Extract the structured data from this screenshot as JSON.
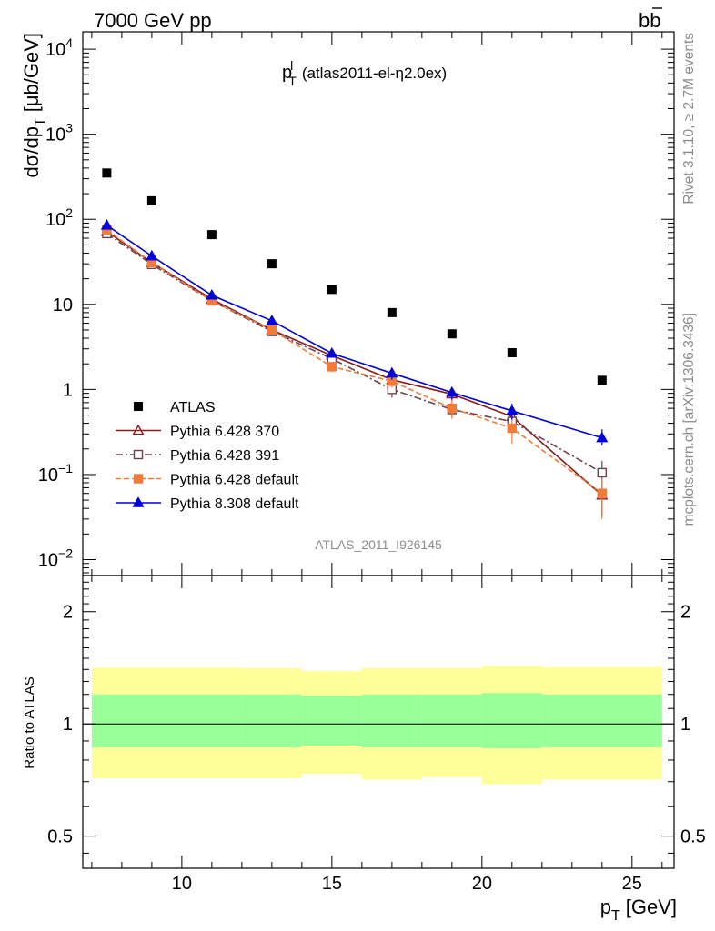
{
  "header": {
    "left": "7000 GeV pp",
    "right_main": "b",
    "right_bar": "b"
  },
  "side_labels": {
    "rivet": "Rivet 3.1.10, ≥ 2.7M events",
    "mcplots": "mcplots.cern.ch [arXiv:1306.3436]"
  },
  "chart_data": {
    "type": "scatter",
    "title": "(atlas2011-el-η2.0ex)",
    "title_var": "p",
    "title_sub": "T",
    "title_sup": "l",
    "watermark": "ATLAS_2011_I926145",
    "ylabel_main": "dσ/dp",
    "ylabel_sub": "T",
    "ylabel_unit": "[μb/GeV]",
    "ylabel_ratio": "Ratio to ATLAS",
    "xlabel_main": "p",
    "xlabel_sub": "T",
    "xlabel_unit": "[GeV]",
    "xlim": [
      6.7,
      26.4
    ],
    "main_ylim": [
      0.0065,
      16000
    ],
    "main_yscale": "log",
    "ratio_ylim": [
      0.41,
      2.5
    ],
    "ratio_yscale": "log",
    "x_ticks": [
      "10",
      "15",
      "20",
      "25"
    ],
    "main_y_ticks": [
      {
        "base": "10",
        "exp": "4"
      },
      {
        "base": "10",
        "exp": "3"
      },
      {
        "base": "10",
        "exp": "2"
      },
      {
        "base": "10",
        "exp": ""
      },
      {
        "base": "1",
        "exp": ""
      },
      {
        "base": "10",
        "exp": "−1"
      },
      {
        "base": "10",
        "exp": "−2"
      }
    ],
    "ratio_y_ticks": [
      "2",
      "1",
      "0.5"
    ],
    "legend_position": "bottom-left",
    "reference": {
      "name": "ATLAS",
      "x": [
        7.5,
        9,
        11,
        13,
        15,
        17,
        19,
        21,
        24
      ],
      "y": [
        350,
        165,
        66,
        30,
        15,
        8,
        4.5,
        2.7,
        1.28
      ]
    },
    "series": [
      {
        "name": "Pythia 6.428 370",
        "color": "#8b1a1a",
        "dash": "",
        "marker": "open-triangle",
        "x": [
          7.5,
          9,
          11,
          13,
          15,
          17,
          19,
          21,
          24
        ],
        "y": [
          72,
          31,
          11.5,
          5,
          2.5,
          1.3,
          0.88,
          0.48,
          0.057
        ],
        "err_hi": [
          0,
          0,
          0,
          0.3,
          0.25,
          0.25,
          0.15,
          0.1,
          0.02
        ],
        "err_lo": [
          0,
          0,
          0,
          0.3,
          0.25,
          0.25,
          0.15,
          0.1,
          0.025
        ]
      },
      {
        "name": "Pythia 6.428 391",
        "color": "#704050",
        "dash": "8,3,2,3",
        "marker": "open-square",
        "x": [
          7.5,
          9,
          11,
          13,
          15,
          17,
          19,
          21,
          24
        ],
        "y": [
          68,
          29.5,
          11,
          4.8,
          2.3,
          1.0,
          0.58,
          0.42,
          0.105
        ],
        "err_hi": [
          0,
          0,
          0,
          0.3,
          0.25,
          0.2,
          0.1,
          0.08,
          0.04
        ],
        "err_lo": [
          0,
          0,
          0,
          0.3,
          0.25,
          0.2,
          0.1,
          0.08,
          0.03
        ]
      },
      {
        "name": "Pythia 6.428 default",
        "color": "#f07b3a",
        "dash": "6,3",
        "marker": "filled-square",
        "x": [
          7.5,
          9,
          11,
          13,
          15,
          17,
          19,
          21,
          24
        ],
        "y": [
          75,
          31,
          11,
          5,
          1.85,
          1.25,
          0.6,
          0.35,
          0.06
        ],
        "err_hi": [
          0,
          0,
          0,
          0.3,
          0.25,
          0.2,
          0.15,
          0.12,
          0.03
        ],
        "err_lo": [
          0,
          0,
          0,
          0.3,
          0.25,
          0.2,
          0.15,
          0.12,
          0.03
        ]
      },
      {
        "name": "Pythia 8.308 default",
        "color": "#0000dd",
        "dash": "",
        "marker": "filled-triangle",
        "x": [
          7.5,
          9,
          11,
          13,
          15,
          17,
          19,
          21,
          24
        ],
        "y": [
          85,
          37,
          12.8,
          6.4,
          2.65,
          1.55,
          0.92,
          0.56,
          0.27
        ],
        "err_hi": [
          0,
          0,
          0,
          0.3,
          0.25,
          0.25,
          0.15,
          0.12,
          0.07
        ],
        "err_lo": [
          0,
          0,
          0,
          0.3,
          0.25,
          0.25,
          0.15,
          0.12,
          0.05
        ]
      }
    ],
    "ratio_band": [
      {
        "x0": 7,
        "x1": 12,
        "inner_lo": 0.865,
        "inner_hi": 1.2,
        "outer_lo": 0.715,
        "outer_hi": 1.415
      },
      {
        "x0": 12,
        "x1": 14,
        "inner_lo": 0.865,
        "inner_hi": 1.2,
        "outer_lo": 0.715,
        "outer_hi": 1.41
      },
      {
        "x0": 14,
        "x1": 16,
        "inner_lo": 0.875,
        "inner_hi": 1.19,
        "outer_lo": 0.735,
        "outer_hi": 1.385
      },
      {
        "x0": 16,
        "x1": 18,
        "inner_lo": 0.865,
        "inner_hi": 1.2,
        "outer_lo": 0.71,
        "outer_hi": 1.41
      },
      {
        "x0": 18,
        "x1": 20,
        "inner_lo": 0.865,
        "inner_hi": 1.2,
        "outer_lo": 0.72,
        "outer_hi": 1.41
      },
      {
        "x0": 20,
        "x1": 22,
        "inner_lo": 0.86,
        "inner_hi": 1.21,
        "outer_lo": 0.69,
        "outer_hi": 1.43
      },
      {
        "x0": 22,
        "x1": 26,
        "inner_lo": 0.865,
        "inner_hi": 1.2,
        "outer_lo": 0.71,
        "outer_hi": 1.42
      }
    ],
    "band_colors": {
      "inner": "#99ff99",
      "outer": "#ffff99"
    }
  }
}
